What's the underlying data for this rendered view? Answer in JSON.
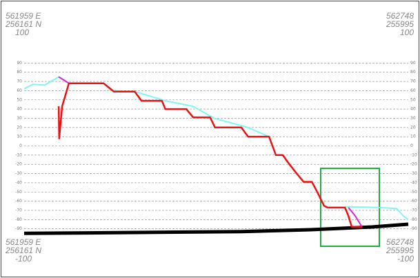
{
  "chart_data": {
    "type": "line",
    "corner_labels": {
      "top_left": [
        "561959 E",
        "256161 N",
        "100"
      ],
      "top_right": [
        "562748",
        "255995",
        "100"
      ],
      "bottom_left": [
        "561959 E",
        "256161 N",
        "-100"
      ],
      "bottom_right": [
        "562748",
        "255995",
        "-100"
      ]
    },
    "xlim": [
      561959,
      562748
    ],
    "ylim": [
      -100,
      100
    ],
    "yticks": [
      -90,
      -80,
      -70,
      -60,
      -50,
      -40,
      -30,
      -20,
      -10,
      0,
      10,
      20,
      30,
      40,
      50,
      60,
      70,
      80,
      90
    ],
    "grid": true,
    "series": [
      {
        "color": "#000000",
        "x": [
          561959,
          562193,
          562405,
          562547,
          562674,
          562748
        ],
        "values": [
          -95,
          -94,
          -93,
          -91,
          -88,
          -85
        ]
      },
      {
        "color": "#7ff5f5",
        "x": [
          561959,
          561977,
          562001,
          562030,
          562051,
          562122,
          562143,
          562193,
          562249,
          562306,
          562349,
          562419,
          562462,
          null,
          562618,
          562688,
          562724,
          562738,
          562748
        ],
        "values": [
          62,
          67,
          66,
          75,
          68,
          68,
          60,
          58,
          49,
          43,
          30,
          20,
          10,
          null,
          -66,
          -67,
          -68,
          -76,
          -80
        ]
      },
      {
        "color": "#e020e0",
        "x": [
          562030,
          562051,
          null,
          562625,
          562639,
          562653
        ],
        "values": [
          75,
          68,
          null,
          -67,
          -76,
          -88
        ]
      },
      {
        "color": "#ee1111",
        "x": [
          562030,
          562031,
          562037,
          562051,
          562122,
          562143,
          562186,
          562200,
          562242,
          562249,
          562292,
          562306,
          562341,
          562351,
          562405,
          562419,
          562462,
          562476,
          562490,
          562504,
          562519,
          562533,
          562550,
          562561,
          562575,
          562582,
          562618,
          562625,
          562632,
          562653
        ],
        "values": [
          43,
          8,
          43,
          68,
          68,
          59,
          59,
          49,
          49,
          40,
          40,
          31,
          31,
          20,
          20,
          10,
          10,
          -10,
          -10,
          -20,
          -30,
          -39,
          -39,
          -50,
          -65,
          -67,
          -67,
          -76,
          -88,
          -88
        ]
      }
    ]
  }
}
